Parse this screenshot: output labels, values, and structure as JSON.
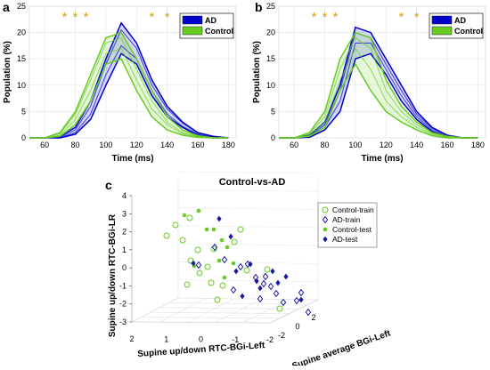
{
  "panels": {
    "a": {
      "letter": "a",
      "xlabel": "Time (ms)",
      "ylabel": "Population (%)"
    },
    "b": {
      "letter": "b",
      "xlabel": "Time (ms)",
      "ylabel": "Population (%)"
    },
    "c": {
      "letter": "c",
      "title": "Control-vs-AD"
    }
  },
  "chart_data": [
    {
      "type": "line",
      "panel": "a",
      "xlabel": "Time (ms)",
      "ylabel": "Population (%)",
      "xlim": [
        50,
        185
      ],
      "ylim": [
        0,
        25
      ],
      "xticks": [
        60,
        80,
        100,
        120,
        140,
        160,
        180
      ],
      "yticks": [
        0,
        5,
        10,
        15,
        20,
        25
      ],
      "grid": true,
      "legend_position": "top-right",
      "star_x": [
        73,
        80,
        87,
        130,
        140
      ],
      "star_symbol": "*",
      "series": [
        {
          "name": "AD",
          "color": "#0000cc",
          "x": [
            50,
            60,
            70,
            80,
            90,
            100,
            110,
            120,
            130,
            140,
            150,
            160,
            170,
            180
          ],
          "bands": [
            [
              0,
              0,
              0.3,
              2,
              7,
              15,
              21.8,
              18,
              11,
              6,
              3,
              1,
              0.3,
              0
            ],
            [
              0,
              0,
              0.2,
              1.5,
              6,
              14,
              20.5,
              17,
              10,
              5.5,
              2.8,
              0.9,
              0.2,
              0
            ],
            [
              0,
              0,
              0.1,
              1,
              4.5,
              12,
              17.5,
              15,
              9,
              4.5,
              2.2,
              0.7,
              0.1,
              0
            ],
            [
              0,
              0,
              0,
              0.7,
              3.5,
              10,
              16,
              14,
              8,
              4,
              2,
              0.5,
              0,
              0
            ]
          ]
        },
        {
          "name": "Control",
          "color": "#66cc22",
          "x": [
            50,
            60,
            70,
            80,
            90,
            100,
            110,
            120,
            130,
            140,
            150,
            160,
            170,
            180
          ],
          "bands": [
            [
              0,
              0,
              1,
              5,
              12,
              19,
              20,
              15,
              9,
              4,
              1.5,
              0.4,
              0,
              0
            ],
            [
              0,
              0,
              0.8,
              4.5,
              11,
              18,
              19,
              13,
              7,
              3,
              1,
              0.3,
              0,
              0
            ],
            [
              0,
              0,
              0.5,
              3.5,
              9,
              16,
              17,
              11,
              5.5,
              2.5,
              0.8,
              0.2,
              0,
              0
            ],
            [
              0,
              0,
              0.3,
              2.5,
              7,
              14,
              15,
              9,
              4,
              1.5,
              0.5,
              0.1,
              0,
              0
            ]
          ]
        }
      ]
    },
    {
      "type": "line",
      "panel": "b",
      "xlabel": "Time (ms)",
      "ylabel": "Population (%)",
      "xlim": [
        50,
        185
      ],
      "ylim": [
        0,
        25
      ],
      "xticks": [
        60,
        80,
        100,
        120,
        140,
        160,
        180
      ],
      "yticks": [
        0,
        5,
        10,
        15,
        20,
        25
      ],
      "grid": true,
      "legend_position": "top-right",
      "star_x": [
        73,
        80,
        87,
        130,
        140
      ],
      "star_symbol": "*",
      "series": [
        {
          "name": "AD",
          "color": "#0000cc",
          "x": [
            50,
            60,
            70,
            80,
            90,
            100,
            110,
            120,
            130,
            140,
            150,
            160,
            170,
            180
          ],
          "bands": [
            [
              0,
              0,
              0.5,
              3,
              10,
              21,
              20,
              15,
              10,
              5,
              2,
              0.5,
              0,
              0
            ],
            [
              0,
              0,
              0.3,
              2.5,
              9,
              20,
              19,
              14,
              9,
              4.5,
              1.8,
              0.4,
              0,
              0
            ],
            [
              0,
              0,
              0.2,
              2,
              7,
              18,
              18,
              13,
              8,
              4,
              1.5,
              0.3,
              0,
              0
            ],
            [
              0,
              0,
              0.1,
              1.5,
              5,
              15,
              16,
              12,
              7,
              3.5,
              1.2,
              0.2,
              0,
              0
            ]
          ]
        },
        {
          "name": "Control",
          "color": "#66cc22",
          "x": [
            50,
            60,
            70,
            80,
            90,
            100,
            110,
            120,
            130,
            140,
            150,
            160,
            170,
            180
          ],
          "bands": [
            [
              0,
              0,
              1,
              5,
              15,
              20,
              19,
              11,
              6,
              3,
              1,
              0.3,
              0,
              0
            ],
            [
              0,
              0,
              0.8,
              4,
              13,
              19,
              17,
              9,
              5,
              2.5,
              0.8,
              0.2,
              0,
              0
            ],
            [
              0,
              0,
              0.5,
              3,
              11,
              17,
              13,
              7,
              4,
              2,
              0.6,
              0.1,
              0,
              0
            ],
            [
              0,
              0,
              0.3,
              2,
              9,
              14,
              9,
              5,
              3,
              1.5,
              0.4,
              0,
              0,
              0
            ]
          ]
        }
      ]
    },
    {
      "type": "scatter",
      "panel": "c",
      "title": "Control-vs-AD",
      "xlabel": "Supine up/down RTC-BGi-Left",
      "ylabel": "Supine up/down RTC-BGi-LR",
      "zlabel": "Supine average BGi-Left",
      "xticks": [
        2,
        1,
        0,
        -1,
        -2
      ],
      "zticks": [
        -2,
        0,
        2
      ],
      "yticks": [
        4,
        3,
        2,
        1,
        0,
        -1,
        -2,
        -3
      ],
      "ylim": [
        -3,
        4
      ],
      "legend_position": "top-right",
      "series": [
        {
          "name": "Control-train",
          "color": "#66cc22",
          "marker": "open-circle"
        },
        {
          "name": "AD-train",
          "color": "#1a1aa0",
          "marker": "open-diamond"
        },
        {
          "name": "Control-test",
          "color": "#66cc22",
          "marker": "filled-dot"
        },
        {
          "name": "AD-test",
          "color": "#1a1aa0",
          "marker": "filled-diamond"
        }
      ]
    }
  ]
}
